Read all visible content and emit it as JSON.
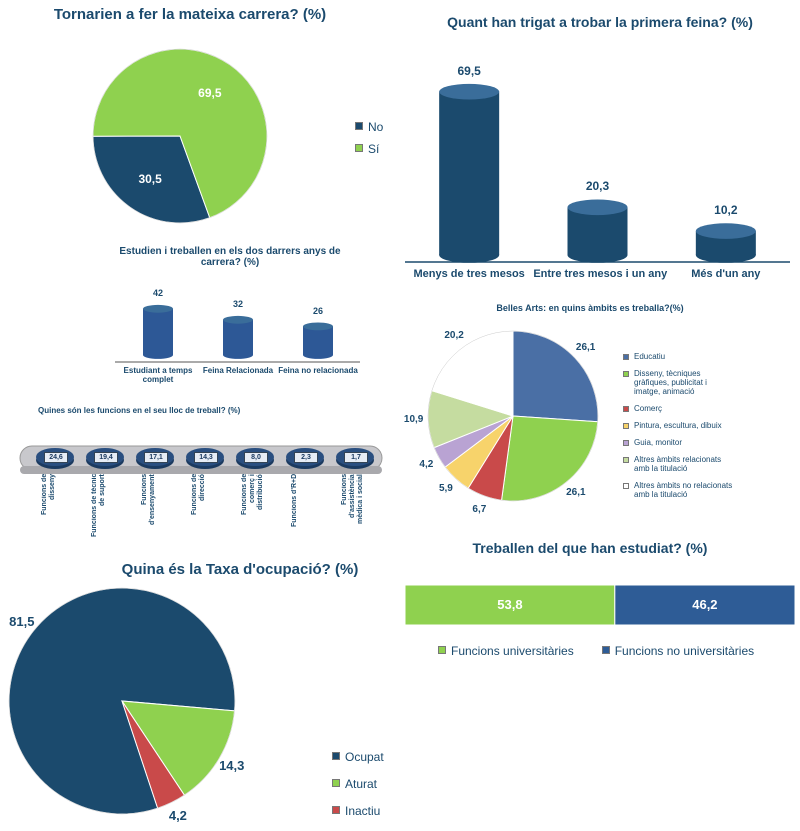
{
  "chart_data": [
    {
      "type": "pie",
      "title": "Tornarien a fer la mateixa carrera? (%)",
      "categories": [
        "No",
        "Sí"
      ],
      "values": [
        30.5,
        69.5
      ],
      "value_labels": [
        "30,5",
        "69,5"
      ],
      "colors": [
        "#1b4a6d",
        "#8fd14f"
      ],
      "legend": "right"
    },
    {
      "type": "bar",
      "title": "Quant han trigat a trobar la primera feina? (%)",
      "categories": [
        "Menys de tres mesos",
        "Entre tres mesos i un any",
        "Més d'un any"
      ],
      "values": [
        69.5,
        20.3,
        10.2
      ],
      "value_labels": [
        "69,5",
        "20,3",
        "10,2"
      ],
      "color": "#1b4a6d"
    },
    {
      "type": "bar",
      "title": "Estudien i treballen en els dos darrers anys de carrera? (%)",
      "categories": [
        "Estudiant a temps complet",
        "Feina Relacionada",
        "Feina no relacionada"
      ],
      "values": [
        42,
        32,
        26
      ],
      "color": "#2d5896"
    },
    {
      "type": "bar",
      "title": "Quines són les funcions en el seu lloc de treball? (%)",
      "categories": [
        "Funcions de disseny",
        "Funcions de técnic de suport",
        "Funcions d'ensenyament",
        "Funcions de direcció",
        "Funcions de comerç i distribució",
        "Funcions d'R+D",
        "Funcions d'assistència mèdica i social"
      ],
      "values": [
        24.6,
        19.4,
        17.1,
        14.3,
        8.0,
        2.3,
        1.7
      ],
      "value_labels": [
        "24,6",
        "19,4",
        "17,1",
        "14,3",
        "8,0",
        "2,3",
        "1,7"
      ],
      "color": "#2a4f80"
    },
    {
      "type": "pie",
      "title": "Belles Arts: en quins àmbits es treballa?(%)",
      "categories": [
        "Educatiu",
        "Disseny, tècniques gràfiques, publicitat i imatge, animació",
        "Comerç",
        "Pintura, escultura, dibuix",
        "Guia,  monitor",
        "Altres àmbits relacionats amb la titulació",
        "Altres àmbits no relacionats amb la titulació"
      ],
      "values": [
        26.1,
        26.1,
        6.7,
        5.9,
        4.2,
        10.9,
        20.2
      ],
      "value_labels": [
        "26,1",
        "26,1",
        "6,7",
        "5,9",
        "4,2",
        "10,9",
        "20,2"
      ],
      "colors": [
        "#4a6fa5",
        "#8fd14f",
        "#c94a4a",
        "#f7d36b",
        "#b9a3d3",
        "#c5dca0",
        "#ffffff"
      ],
      "legend": "right"
    },
    {
      "type": "pie",
      "title": "Quina és la Taxa d'ocupació? (%)",
      "categories": [
        "Ocupat",
        "Aturat",
        "Inactiu"
      ],
      "values": [
        81.5,
        14.3,
        4.2
      ],
      "value_labels": [
        "81,5",
        "14,3",
        "4,2"
      ],
      "colors": [
        "#1b4a6d",
        "#8fd14f",
        "#c94a4a"
      ],
      "legend": "right"
    },
    {
      "type": "stacked-bar",
      "title": "Treballen del que han estudiat? (%)",
      "series": [
        {
          "name": "Funcions universitàries",
          "color": "#8fd14f",
          "values": [
            53.8
          ],
          "value_labels": [
            "53,8"
          ]
        },
        {
          "name": "Funcions no universitàries",
          "color": "#2e5c96",
          "values": [
            46.2
          ],
          "value_labels": [
            "46,2"
          ]
        }
      ],
      "legend": "bottom"
    }
  ]
}
